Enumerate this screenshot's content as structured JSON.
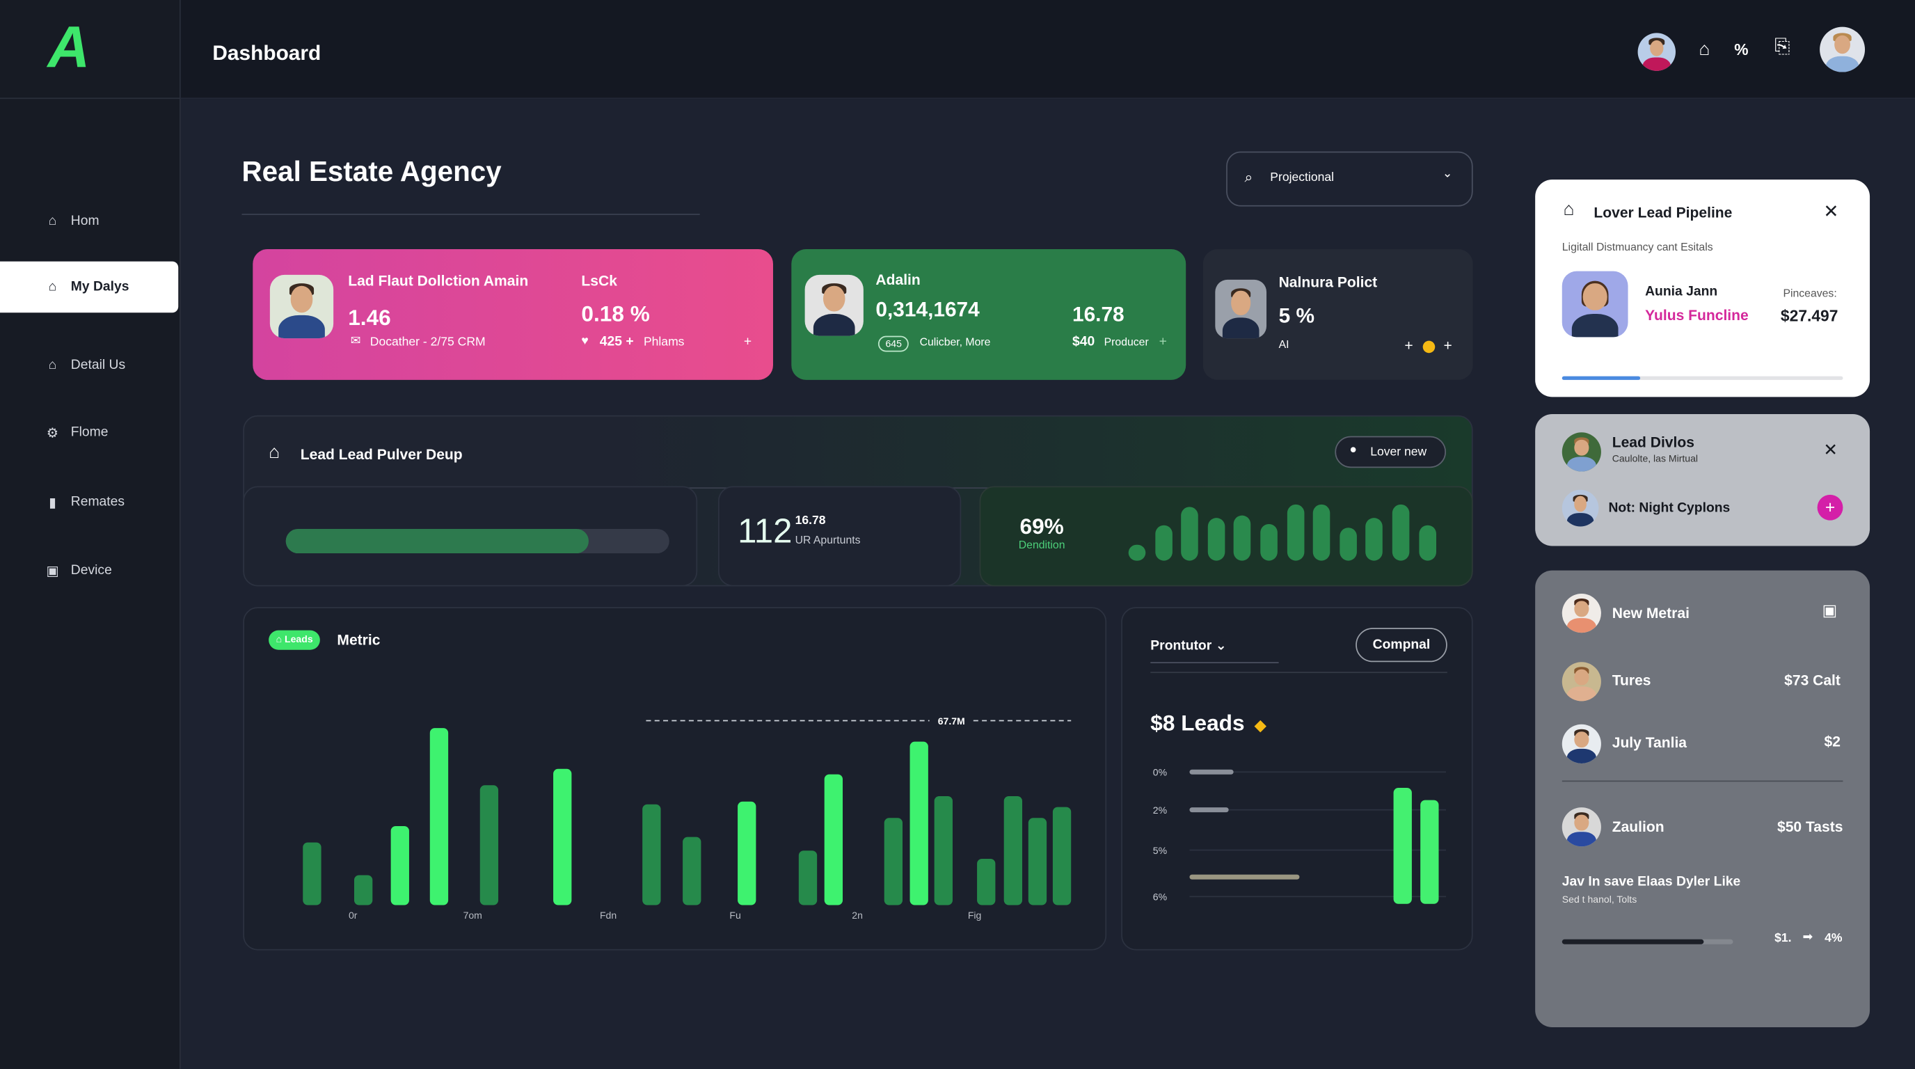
{
  "header": {
    "title": "Dashboard",
    "logo": "A",
    "icons": [
      "home-icon",
      "percent-icon",
      "share-icon"
    ]
  },
  "sidebar": {
    "items": [
      {
        "label": "Hom",
        "icon": "home-icon"
      },
      {
        "label": "My Dalys",
        "icon": "inbox-icon",
        "active": true
      },
      {
        "label": "Detail Us",
        "icon": "house-icon"
      },
      {
        "label": "Flome",
        "icon": "gear-icon"
      },
      {
        "label": "Remates",
        "icon": "bar-chart-icon"
      },
      {
        "label": "Device",
        "icon": "device-icon"
      }
    ]
  },
  "page": {
    "title": "Real Estate Agency",
    "dropdown": "Projectional"
  },
  "cards": [
    {
      "title": "Lad Flaut Dollction Amain",
      "value": "1.46",
      "meta": "Docather - 2/75 CRM",
      "title2": "LsCk",
      "value2": "0.18 %",
      "meta2_strong": "425 +",
      "meta2": "Phlams",
      "color": "#e04a95"
    },
    {
      "title": "Adalin",
      "value": "0,314,1674",
      "badge": "645",
      "meta": "Culicber, More",
      "value2": "16.78",
      "meta2_strong": "$40",
      "meta2": "Producer",
      "color": "#2a7d48"
    },
    {
      "title": "Nalnura Polict",
      "value": "5 %",
      "meta": "AI"
    }
  ],
  "lead_panel": {
    "title": "Lead Lead Pulver Deup",
    "button": "Lover new",
    "progress": 0.79,
    "stat_value": "112",
    "stat_sup": "16.78",
    "stat_label": "UR Apurtunts",
    "pct": "69%",
    "pct_label": "Dendition",
    "mini_bars": [
      29,
      64,
      96,
      76,
      81,
      65,
      100,
      99,
      58,
      76,
      99,
      64
    ]
  },
  "metric": {
    "badge": "Leads",
    "title": "Metric",
    "chart_data": {
      "type": "bar",
      "ref_line": {
        "label": "67.7M",
        "value": 67.7
      },
      "values": [
        23,
        11,
        29,
        65,
        44,
        50,
        37,
        25,
        38,
        20,
        48,
        32,
        60,
        40,
        17,
        40,
        32,
        36
      ],
      "highlight": [
        false,
        false,
        true,
        true,
        false,
        true,
        false,
        false,
        true,
        false,
        true,
        false,
        true,
        false,
        false,
        false,
        false,
        false
      ],
      "x_tick_labels": [
        "0r",
        "7om",
        "Fdn",
        "Fu",
        "2n",
        "Fig"
      ],
      "ylim": [
        0,
        70
      ]
    }
  },
  "leads_panel": {
    "dropdown": "Prontutor",
    "button": "Compnal",
    "headline": "$8 Leads",
    "chart_data": {
      "type": "bar",
      "y_tick_labels": [
        "0%",
        "2%",
        "5%",
        "6%"
      ],
      "hbars": [
        0.18,
        0.16,
        0,
        0.45
      ],
      "vbars": [
        0.95,
        0.85
      ]
    }
  },
  "pipeline": {
    "title": "Lover Lead Pipeline",
    "subtitle": "Ligitall Distmuancy cant Esitals",
    "name": "Aunia Jann",
    "role": "Yulus Funcline",
    "price_label": "Pinceaves:",
    "price": "$27.497",
    "progress": 0.28
  },
  "lead_divlos": {
    "name": "Lead Divlos",
    "sub": "Caulolte, las Mirtual",
    "note": "Not: Night Cyplons"
  },
  "list": {
    "items": [
      {
        "name": "New Metrai",
        "value": ""
      },
      {
        "name": "Tures",
        "value": "$73 Calt"
      },
      {
        "name": "July Tanlia",
        "value": "$2"
      },
      {
        "name": "Zaulion",
        "value": "$50 Tasts"
      }
    ],
    "footer_title": "Jav In save Elaas Dyler Like",
    "footer_sub": "Sed t hanol, Tolts",
    "footer_value": "$1.",
    "footer_pct": "4%",
    "progress": 0.83
  }
}
